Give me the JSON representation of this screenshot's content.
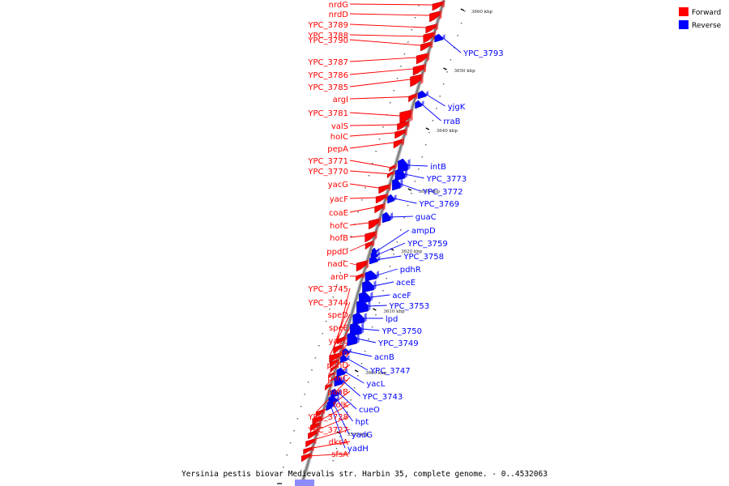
{
  "colors": {
    "forward": "#ff0000",
    "reverse": "#0000ff",
    "backbone": "#808080",
    "caption_box": "#8c8cff"
  },
  "legend": [
    {
      "label": "Forward",
      "color": "#ff0000"
    },
    {
      "label": "Reverse",
      "color": "#0000ff"
    }
  ],
  "caption": "Yersinia pestis biovar Medievalis str. Harbin 35, complete genome. - 0..4532063",
  "scale_labels": [
    "3660 kbp",
    "3650 kbp",
    "3640 kbp",
    "3630 kbp",
    "3620 kbp",
    "3610 kbp",
    "3600 kbp",
    "3590 kbp"
  ],
  "forward_genes": [
    "nrdG",
    "nrdD",
    "YPC_3789",
    "YPC_3788",
    "YPC_3790",
    "YPC_3787",
    "YPC_3786",
    "YPC_3785",
    "argI",
    "YPC_3781",
    "valS",
    "holC",
    "pepA",
    "YPC_3771",
    "YPC_3770",
    "yacG",
    "yacF",
    "coaE",
    "hofC",
    "hofB",
    "ppdD",
    "nadC",
    "aroP",
    "YPC_3745",
    "YPC_3744",
    "speD",
    "speE",
    "yacC",
    "can",
    "panD",
    "panC",
    "panB",
    "folK",
    "YPC_3728",
    "YPC_3727",
    "dksA",
    "sfsA"
  ],
  "reverse_genes": [
    "YPC_3793",
    "yjgK",
    "rraB",
    "intB",
    "YPC_3773",
    "YPC_3772",
    "YPC_3769",
    "guaC",
    "ampD",
    "YPC_3759",
    "YPC_3758",
    "pdhR",
    "aceE",
    "aceF",
    "YPC_3753",
    "lpd",
    "YPC_3750",
    "YPC_3749",
    "acnB",
    "YPC_3747",
    "yacL",
    "YPC_3743",
    "cueO",
    "hpt",
    "yadG",
    "yadH"
  ]
}
